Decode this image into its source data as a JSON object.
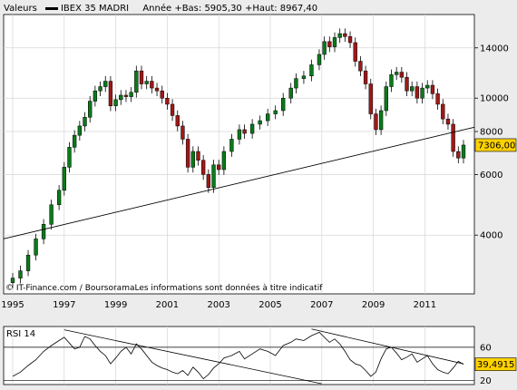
{
  "header": {
    "section_label": "Valeurs",
    "instrument": "IBEX 35 MADRI",
    "stats": "Année +Bas: 5905,30 +Haut: 8967,40"
  },
  "footer_note": "© IT-Finance.com / BoursoramaLes informations sont données à titre indicatif",
  "colors": {
    "background": "#ececec",
    "plot": "#ffffff",
    "up": "#0a7a1a",
    "down": "#a01818",
    "price_tag": "#ffd200"
  },
  "chart_data": [
    {
      "type": "candlestick",
      "title": "IBEX 35 MADRI",
      "x_tick_labels": [
        "1995",
        "1997",
        "1999",
        "2001",
        "2003",
        "2005",
        "2007",
        "2009",
        "2011"
      ],
      "xlim": [
        1995.0,
        2012.5
      ],
      "y_tick_labels": [
        "4000",
        "6000",
        "8000",
        "10000",
        "14000"
      ],
      "yscale": "log",
      "ylim": [
        2700,
        17500
      ],
      "last_value_label": "7306,00",
      "grid": true,
      "series": [
        {
          "x": [
            1995.0,
            1995.3,
            1995.6,
            1995.9,
            1996.2,
            1996.5,
            1996.8,
            1997.0,
            1997.2,
            1997.4,
            1997.6,
            1997.8,
            1998.0,
            1998.2,
            1998.4,
            1998.6,
            1998.8,
            1999.0,
            1999.2,
            1999.4,
            1999.6,
            1999.8,
            2000.0,
            2000.2,
            2000.4,
            2000.6,
            2000.8,
            2001.0,
            2001.2,
            2001.4,
            2001.6,
            2001.8,
            2002.0,
            2002.2,
            2002.4,
            2002.6,
            2002.8,
            2003.0,
            2003.2,
            2003.5,
            2003.8,
            2004.0,
            2004.3,
            2004.6,
            2004.9,
            2005.2,
            2005.5,
            2005.8,
            2006.0,
            2006.3,
            2006.6,
            2006.9,
            2007.1,
            2007.3,
            2007.5,
            2007.7,
            2007.9,
            2008.1,
            2008.3,
            2008.5,
            2008.7,
            2008.9,
            2009.1,
            2009.3,
            2009.5,
            2009.7,
            2009.9,
            2010.1,
            2010.3,
            2010.5,
            2010.7,
            2010.9,
            2011.1,
            2011.3,
            2011.5,
            2011.7,
            2011.9,
            2012.1,
            2012.3,
            2012.5
          ],
          "y": [
            3000,
            3150,
            3500,
            3900,
            4300,
            4900,
            5400,
            6300,
            7200,
            7800,
            8300,
            8800,
            9800,
            10500,
            10800,
            11200,
            9500,
            9900,
            10200,
            10100,
            10400,
            12000,
            11000,
            11200,
            10700,
            10500,
            10000,
            9600,
            8900,
            8300,
            7600,
            6300,
            7000,
            6600,
            6000,
            5500,
            6400,
            6200,
            7000,
            7600,
            8100,
            7900,
            8400,
            8600,
            9000,
            9200,
            10000,
            10700,
            11400,
            11600,
            12500,
            13400,
            14600,
            14100,
            15000,
            15400,
            15100,
            14500,
            12800,
            12000,
            11000,
            9000,
            8100,
            9200,
            10800,
            11700,
            11900,
            11500,
            10500,
            10800,
            10000,
            10700,
            10900,
            10300,
            9600,
            8700,
            8400,
            7000,
            6700,
            7306
          ]
        }
      ]
    },
    {
      "type": "line",
      "title": "RSI 14",
      "y_tick_labels": [
        "20",
        "60"
      ],
      "ylim": [
        15,
        85
      ],
      "last_value_label": "39,4915",
      "series": [
        {
          "x": [
            1995.0,
            1995.3,
            1995.6,
            1995.9,
            1996.2,
            1996.5,
            1996.8,
            1997.0,
            1997.2,
            1997.4,
            1997.6,
            1997.8,
            1998.0,
            1998.2,
            1998.4,
            1998.6,
            1998.8,
            1999.0,
            1999.2,
            1999.4,
            1999.6,
            1999.8,
            2000.0,
            2000.2,
            2000.4,
            2000.6,
            2000.8,
            2001.0,
            2001.2,
            2001.4,
            2001.6,
            2001.8,
            2002.0,
            2002.2,
            2002.4,
            2002.6,
            2002.8,
            2003.0,
            2003.2,
            2003.5,
            2003.8,
            2004.0,
            2004.3,
            2004.6,
            2004.9,
            2005.2,
            2005.5,
            2005.8,
            2006.0,
            2006.3,
            2006.6,
            2006.9,
            2007.1,
            2007.3,
            2007.5,
            2007.7,
            2007.9,
            2008.1,
            2008.3,
            2008.5,
            2008.7,
            2008.9,
            2009.1,
            2009.3,
            2009.5,
            2009.7,
            2009.9,
            2010.1,
            2010.3,
            2010.5,
            2010.7,
            2010.9,
            2011.1,
            2011.3,
            2011.5,
            2011.7,
            2011.9,
            2012.1,
            2012.3,
            2012.5
          ],
          "y": [
            25,
            30,
            38,
            45,
            55,
            62,
            68,
            72,
            65,
            58,
            60,
            73,
            70,
            62,
            55,
            50,
            40,
            47,
            55,
            60,
            52,
            64,
            58,
            50,
            42,
            38,
            35,
            33,
            30,
            28,
            32,
            26,
            36,
            30,
            22,
            27,
            35,
            40,
            47,
            50,
            55,
            46,
            52,
            58,
            55,
            50,
            62,
            66,
            70,
            68,
            74,
            78,
            72,
            66,
            70,
            64,
            55,
            45,
            40,
            38,
            32,
            25,
            30,
            46,
            58,
            60,
            53,
            45,
            48,
            52,
            42,
            46,
            50,
            40,
            33,
            30,
            28,
            35,
            43,
            39.49
          ]
        }
      ]
    }
  ]
}
